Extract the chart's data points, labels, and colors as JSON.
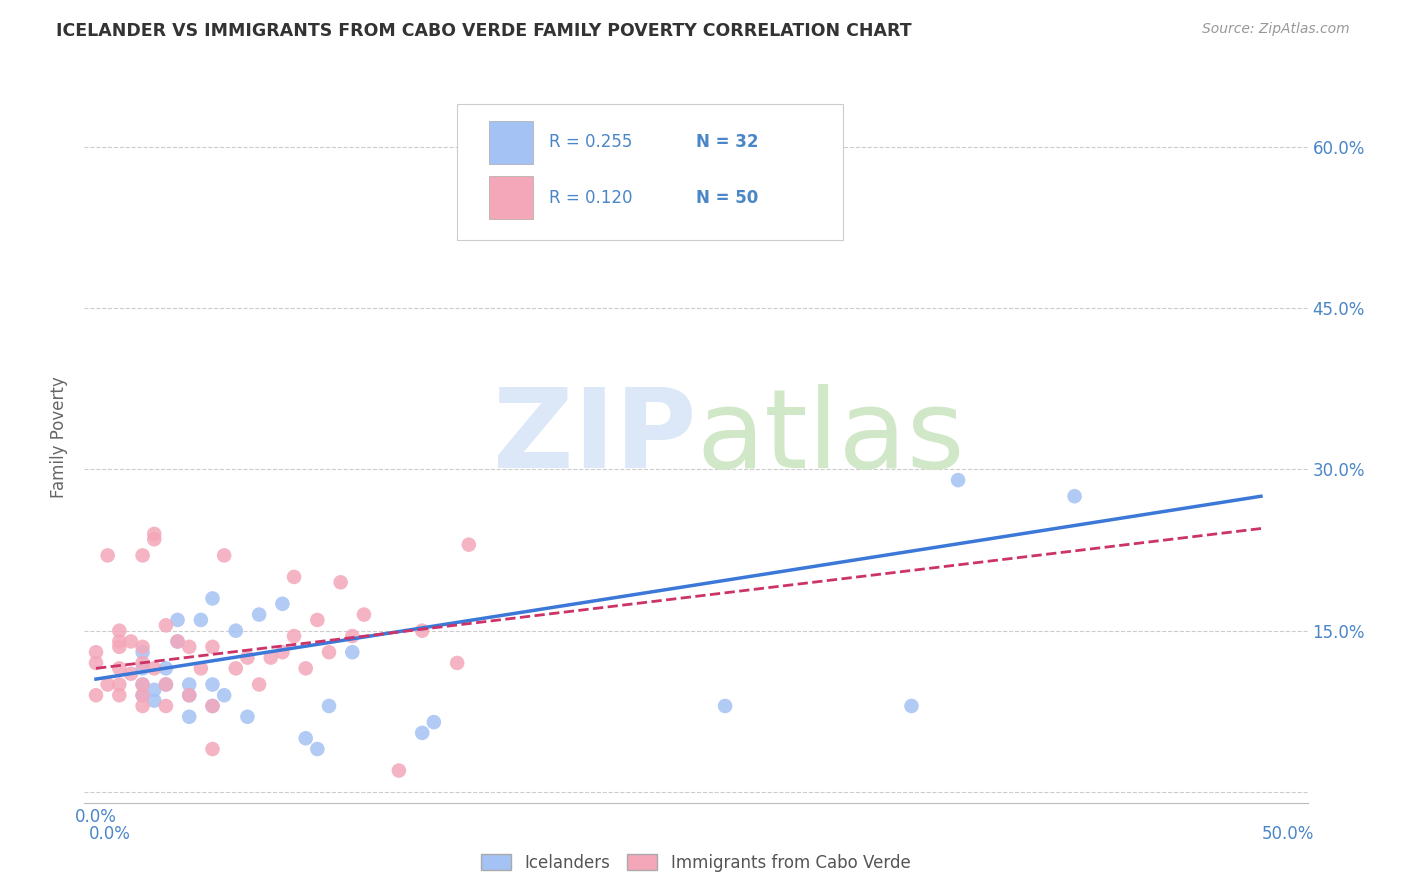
{
  "title": "ICELANDER VS IMMIGRANTS FROM CABO VERDE FAMILY POVERTY CORRELATION CHART",
  "source": "Source: ZipAtlas.com",
  "ylabel": "Family Poverty",
  "ytick_values": [
    0.0,
    0.15,
    0.3,
    0.45,
    0.6
  ],
  "xtick_values": [
    0.0,
    0.1,
    0.2,
    0.3,
    0.4,
    0.5
  ],
  "xlim": [
    -0.005,
    0.52
  ],
  "ylim": [
    -0.01,
    0.67
  ],
  "legend_blue_R": "0.255",
  "legend_blue_N": "32",
  "legend_pink_R": "0.120",
  "legend_pink_N": "50",
  "series1_color": "#a4c2f4",
  "series2_color": "#f4a7b9",
  "trend1_color": "#3c78d8",
  "trend2_color": "#cc3366",
  "series1_x": [
    0.02,
    0.02,
    0.02,
    0.02,
    0.025,
    0.025,
    0.03,
    0.03,
    0.035,
    0.035,
    0.04,
    0.04,
    0.04,
    0.045,
    0.05,
    0.05,
    0.05,
    0.055,
    0.06,
    0.065,
    0.07,
    0.08,
    0.09,
    0.095,
    0.1,
    0.11,
    0.14,
    0.145,
    0.27,
    0.35,
    0.37,
    0.42
  ],
  "series1_y": [
    0.09,
    0.1,
    0.115,
    0.13,
    0.085,
    0.095,
    0.1,
    0.115,
    0.14,
    0.16,
    0.07,
    0.09,
    0.1,
    0.16,
    0.08,
    0.1,
    0.18,
    0.09,
    0.15,
    0.07,
    0.165,
    0.175,
    0.05,
    0.04,
    0.08,
    0.13,
    0.055,
    0.065,
    0.08,
    0.08,
    0.29,
    0.275
  ],
  "series2_x": [
    0.0,
    0.0,
    0.0,
    0.005,
    0.005,
    0.01,
    0.01,
    0.01,
    0.01,
    0.01,
    0.01,
    0.015,
    0.015,
    0.02,
    0.02,
    0.02,
    0.02,
    0.02,
    0.02,
    0.025,
    0.025,
    0.025,
    0.03,
    0.03,
    0.03,
    0.035,
    0.04,
    0.04,
    0.045,
    0.05,
    0.05,
    0.05,
    0.055,
    0.06,
    0.065,
    0.07,
    0.075,
    0.08,
    0.085,
    0.085,
    0.09,
    0.095,
    0.1,
    0.105,
    0.11,
    0.115,
    0.13,
    0.14,
    0.155,
    0.16
  ],
  "series2_y": [
    0.09,
    0.12,
    0.13,
    0.1,
    0.22,
    0.09,
    0.1,
    0.115,
    0.135,
    0.14,
    0.15,
    0.11,
    0.14,
    0.08,
    0.09,
    0.1,
    0.12,
    0.135,
    0.22,
    0.235,
    0.24,
    0.115,
    0.08,
    0.1,
    0.155,
    0.14,
    0.09,
    0.135,
    0.115,
    0.04,
    0.08,
    0.135,
    0.22,
    0.115,
    0.125,
    0.1,
    0.125,
    0.13,
    0.145,
    0.2,
    0.115,
    0.16,
    0.13,
    0.195,
    0.145,
    0.165,
    0.02,
    0.15,
    0.12,
    0.23
  ],
  "trend1_x": [
    0.0,
    0.5
  ],
  "trend1_y": [
    0.105,
    0.275
  ],
  "trend2_x": [
    0.0,
    0.5
  ],
  "trend2_y": [
    0.115,
    0.245
  ],
  "series1_label": "Icelanders",
  "series2_label": "Immigrants from Cabo Verde",
  "background_color": "#ffffff",
  "grid_color": "#cccccc",
  "axis_color": "#4a86c8",
  "title_color": "#333333",
  "source_color": "#999999"
}
